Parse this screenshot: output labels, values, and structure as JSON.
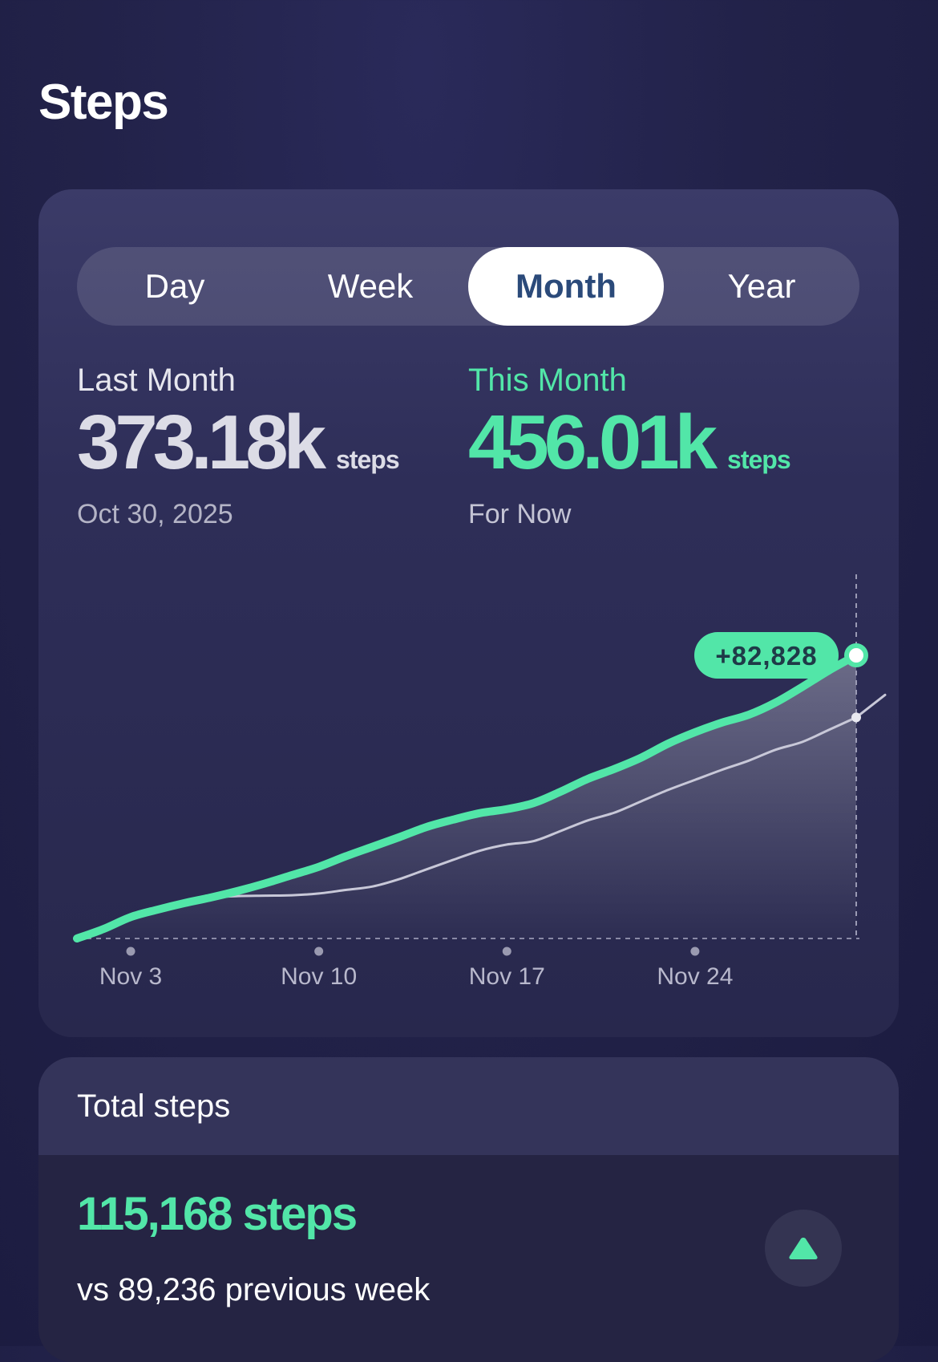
{
  "page": {
    "title": "Steps"
  },
  "tabs": [
    {
      "label": "Day",
      "active": false
    },
    {
      "label": "Week",
      "active": false
    },
    {
      "label": "Month",
      "active": true
    },
    {
      "label": "Year",
      "active": false
    }
  ],
  "stats": {
    "last": {
      "label": "Last Month",
      "value": "373.18k",
      "unit": "steps",
      "sub": "Oct 30, 2025"
    },
    "this": {
      "label": "This Month",
      "value": "456.01k",
      "unit": "steps",
      "sub": "For Now"
    }
  },
  "chart_data": {
    "type": "line",
    "x": [
      1,
      2,
      3,
      4,
      5,
      6,
      7,
      8,
      9,
      10,
      11,
      12,
      13,
      14,
      15,
      16,
      17,
      18,
      19,
      20,
      21,
      22,
      23,
      24,
      25,
      26,
      27,
      28,
      29,
      30
    ],
    "x_tick_labels": [
      {
        "x": 3,
        "label": "Nov 3"
      },
      {
        "x": 10,
        "label": "Nov 10"
      },
      {
        "x": 17,
        "label": "Nov 17"
      },
      {
        "x": 24,
        "label": "Nov 24"
      }
    ],
    "series": [
      {
        "values": [
          0,
          11000,
          24500,
          33000,
          40500,
          47000,
          54500,
          63000,
          72500,
          82000,
          94000,
          105000,
          116000,
          127500,
          136000,
          143500,
          148000,
          155000,
          168000,
          182500,
          194000,
          207000,
          223000,
          236000,
          247000,
          256000,
          270000,
          288000,
          307000,
          324000
        ],
        "color": "#52e6a8"
      },
      {
        "values": [
          0,
          9500,
          23500,
          32500,
          40000,
          46500,
          48500,
          49000,
          49500,
          51500,
          55500,
          59500,
          68000,
          79000,
          90000,
          100500,
          107500,
          111500,
          123000,
          135000,
          144000,
          157000,
          170000,
          181500,
          193000,
          203500,
          216000,
          225000,
          239000,
          253000
        ],
        "color": "#c8c8d8"
      }
    ],
    "annotation": {
      "x": 30,
      "label": "+82,828"
    },
    "ylim": [
      0,
      380000
    ],
    "grid": false,
    "legend": "none"
  },
  "total": {
    "header": "Total steps",
    "value": "115,168 steps",
    "compare": "vs 89,236 previous week",
    "trend_icon": "triangle-up-icon",
    "accent": "#52e6a8"
  },
  "colors": {
    "accent": "#52e6a8",
    "background": "#222249",
    "active_tab_text": "#2b4a7a"
  }
}
